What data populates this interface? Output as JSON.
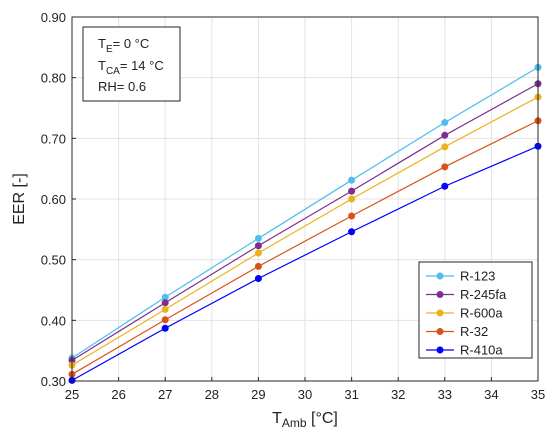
{
  "chart_data": {
    "type": "line",
    "xlabel": "T",
    "xlabel_sub": "Amb",
    "xlabel_unit": " [°C]",
    "ylabel": "EER [-]",
    "xlim": [
      25,
      35
    ],
    "ylim": [
      0.3,
      0.9
    ],
    "xticks": [
      "25",
      "26",
      "27",
      "28",
      "29",
      "30",
      "31",
      "32",
      "33",
      "34",
      "35"
    ],
    "yticks": [
      "0.30",
      "0.40",
      "0.50",
      "0.60",
      "0.70",
      "0.80",
      "0.90"
    ],
    "grid": true,
    "legend_position": "bottom-right",
    "x": [
      25,
      27,
      29,
      31,
      33,
      35
    ],
    "series": [
      {
        "name": "R-123",
        "color": "#4DBEEE",
        "values": [
          0.338,
          0.438,
          0.535,
          0.631,
          0.726,
          0.817
        ]
      },
      {
        "name": "R-245fa",
        "color": "#7E2F8E",
        "values": [
          0.334,
          0.429,
          0.523,
          0.613,
          0.705,
          0.79
        ]
      },
      {
        "name": "R-600a",
        "color": "#EDB120",
        "values": [
          0.326,
          0.418,
          0.511,
          0.6,
          0.686,
          0.768
        ]
      },
      {
        "name": "R-32",
        "color": "#D95319",
        "values": [
          0.311,
          0.401,
          0.489,
          0.572,
          0.653,
          0.729
        ]
      },
      {
        "name": "R-410a",
        "color": "#0000FF",
        "values": [
          0.301,
          0.387,
          0.469,
          0.546,
          0.621,
          0.687
        ]
      }
    ],
    "annotation": [
      {
        "main": "T",
        "sub": "E",
        "rest": "= 0 °C"
      },
      {
        "main": "T",
        "sub": "CA",
        "rest": "= 14 °C"
      },
      {
        "main": "RH= 0.6",
        "sub": "",
        "rest": ""
      }
    ]
  }
}
